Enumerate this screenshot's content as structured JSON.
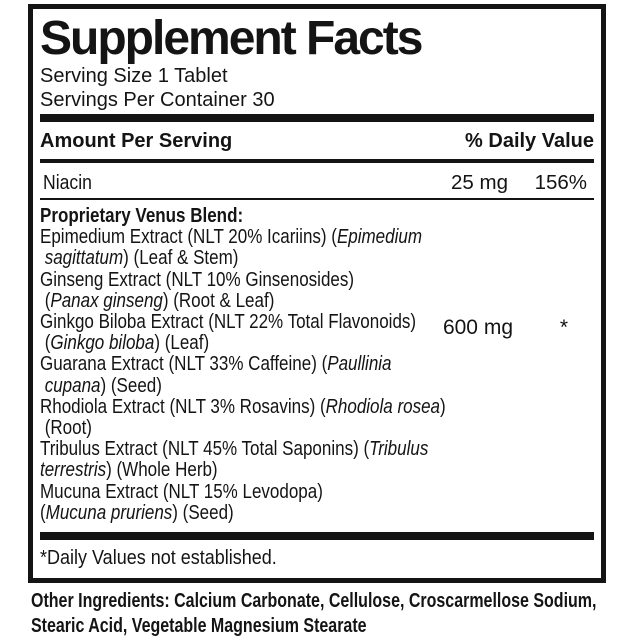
{
  "label": {
    "title": "Supplement Facts",
    "serving_size": "Serving Size 1 Tablet",
    "servings_per_container": "Servings Per Container 30",
    "columns": {
      "amount": "Amount Per Serving",
      "daily_value": "% Daily Value"
    },
    "rows": [
      {
        "name": "Niacin",
        "amount": "25 mg",
        "daily_value": "156%"
      }
    ],
    "blend": {
      "amount": "600 mg",
      "daily_value": "*",
      "lines": [
        {
          "bold": true,
          "segments": [
            {
              "t": "Proprietary Venus Blend:"
            }
          ]
        },
        {
          "segments": [
            {
              "t": "Epimedium Extract (NLT 20% Icariins) ("
            },
            {
              "t": "Epimedium",
              "i": true
            }
          ]
        },
        {
          "segments": [
            {
              "t": " "
            },
            {
              "t": "sagittatum",
              "i": true
            },
            {
              "t": ") (Leaf & Stem)"
            }
          ]
        },
        {
          "segments": [
            {
              "t": "Ginseng Extract (NLT 10% Ginsenosides)"
            }
          ]
        },
        {
          "segments": [
            {
              "t": " ("
            },
            {
              "t": "Panax ginseng",
              "i": true
            },
            {
              "t": ") (Root & Leaf)"
            }
          ]
        },
        {
          "segments": [
            {
              "t": "Ginkgo Biloba Extract (NLT 22% Total Flavonoids)"
            }
          ]
        },
        {
          "segments": [
            {
              "t": " ("
            },
            {
              "t": "Ginkgo biloba",
              "i": true
            },
            {
              "t": ") (Leaf)"
            }
          ]
        },
        {
          "segments": [
            {
              "t": "Guarana Extract (NLT 33% Caffeine) ("
            },
            {
              "t": "Paullinia",
              "i": true
            }
          ]
        },
        {
          "segments": [
            {
              "t": " "
            },
            {
              "t": "cupana",
              "i": true
            },
            {
              "t": ") (Seed)"
            }
          ]
        },
        {
          "segments": [
            {
              "t": "Rhodiola Extract (NLT 3% Rosavins) ("
            },
            {
              "t": "Rhodiola rosea",
              "i": true
            },
            {
              "t": ")"
            }
          ]
        },
        {
          "segments": [
            {
              "t": " (Root)"
            }
          ]
        },
        {
          "segments": [
            {
              "t": "Tribulus Extract (NLT 45% Total Saponins) ("
            },
            {
              "t": "Tribulus",
              "i": true
            }
          ]
        },
        {
          "segments": [
            {
              "t": "terrestris",
              "i": true
            },
            {
              "t": ") (Whole Herb)"
            }
          ]
        },
        {
          "segments": [
            {
              "t": "Mucuna Extract (NLT 15% Levodopa)"
            }
          ]
        },
        {
          "segments": [
            {
              "t": "("
            },
            {
              "t": "Mucuna pruriens",
              "i": true
            },
            {
              "t": ") (Seed)"
            }
          ]
        }
      ]
    },
    "footnote": "*Daily Values not established.",
    "colors": {
      "ink": "#141414",
      "background": "#ffffff"
    }
  },
  "other_ingredients": {
    "lines": [
      "Other Ingredients: Calcium Carbonate, Cellulose, Croscarmellose Sodium,",
      "Stearic Acid, Vegetable Magnesium Stearate"
    ]
  }
}
